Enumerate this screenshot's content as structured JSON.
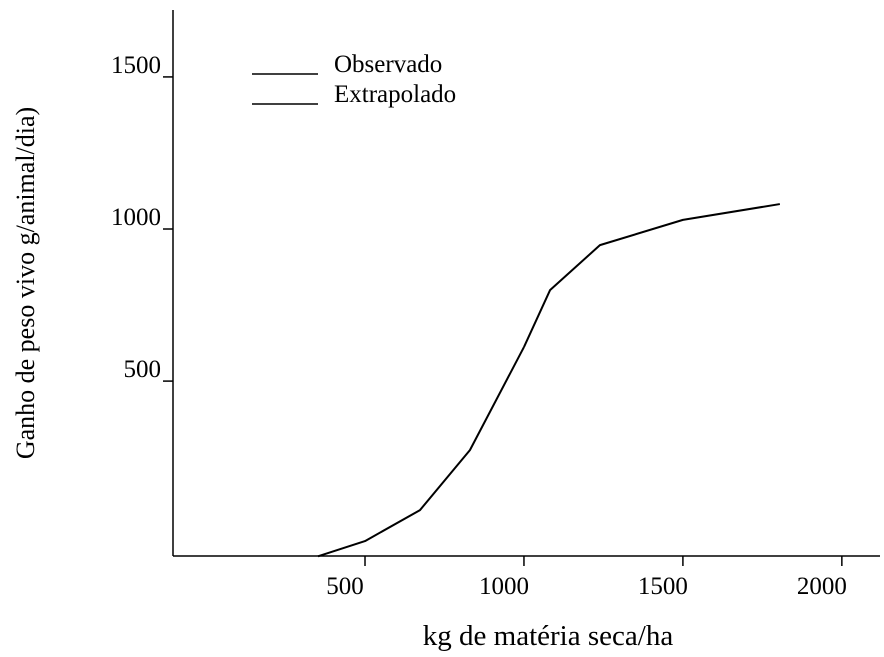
{
  "chart_data": {
    "type": "line",
    "x_label": "kg de matéria seca/ha",
    "y_label": "Ganho de peso vivo g/animal/dia)",
    "x": [
      352,
      500,
      673,
      830,
      1000,
      1082,
      1239,
      1500,
      1805
    ],
    "series": [
      {
        "name": "Observado",
        "color": "#000000",
        "values": [
          -76,
          -26,
          76,
          273,
          612,
          null,
          null,
          null,
          null
        ]
      },
      {
        "name": "Extrapolado",
        "color": "#000000",
        "values": [
          null,
          null,
          null,
          null,
          612,
          799,
          947,
          1030,
          1082
        ]
      }
    ],
    "xlim": [
      -104,
      2120
    ],
    "xticks": [
      500,
      1000,
      1500,
      2000
    ],
    "ylim": [
      -75,
      1720
    ],
    "yticks": [
      500,
      1000,
      1500
    ],
    "grid": false
  }
}
